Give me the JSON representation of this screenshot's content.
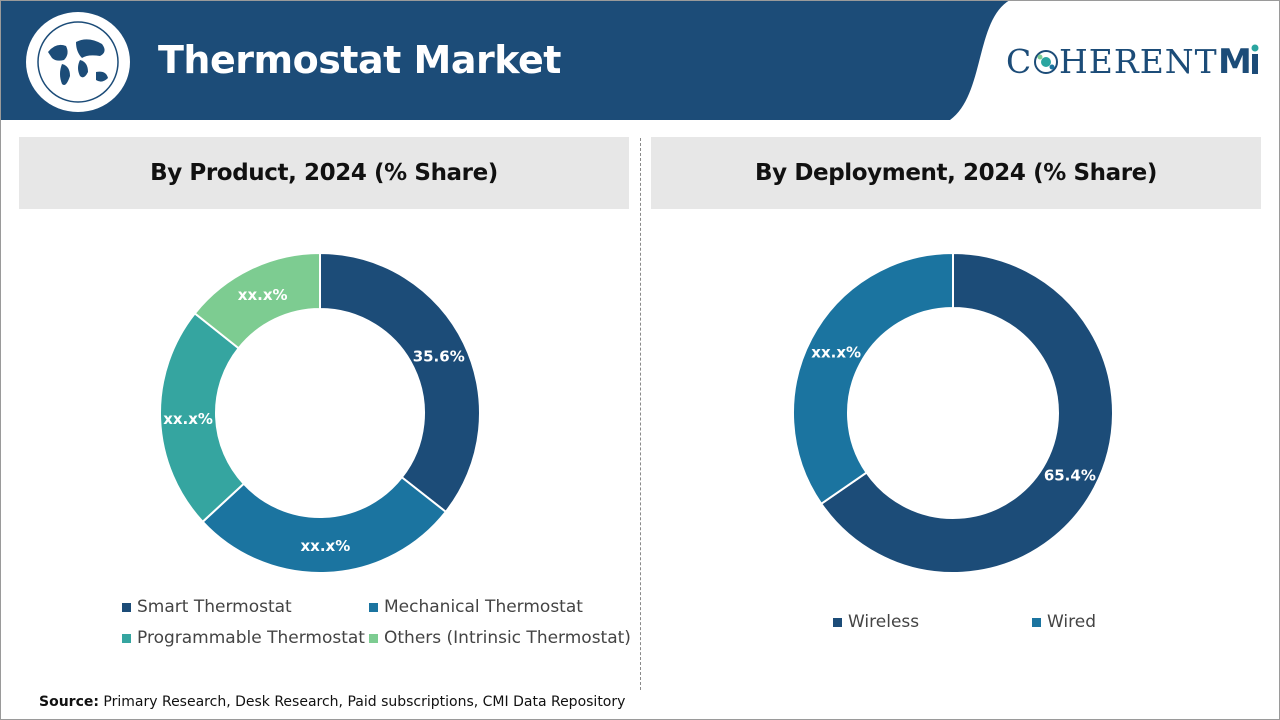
{
  "header": {
    "title": "Thermostat Market",
    "brand": "COHERENTMI"
  },
  "colors": {
    "header_bg": "#1c4c78",
    "smart": "#1c4c78",
    "mechanical": "#1b74a0",
    "programmable": "#35a5a0",
    "others": "#7dcc91",
    "wireless": "#1c4c78",
    "wired": "#1b74a0"
  },
  "source": {
    "label": "Source:",
    "text": "Primary Research, Desk Research, Paid subscriptions, CMI Data Repository"
  },
  "chart_data": [
    {
      "type": "pie",
      "title": "By Product, 2024 (% Share)",
      "donut": true,
      "categories": [
        "Smart Thermostat",
        "Mechanical Thermostat",
        "Programmable Thermostat",
        "Others (Intrinsic Thermostat)"
      ],
      "values": [
        35.6,
        27.5,
        22.6,
        14.3
      ],
      "data_labels": [
        "35.6%",
        "xx.x%",
        "xx.x%",
        "xx.x%"
      ],
      "legend_position": "bottom"
    },
    {
      "type": "pie",
      "title": "By Deployment, 2024 (% Share)",
      "donut": true,
      "categories": [
        "Wireless",
        "Wired"
      ],
      "values": [
        65.4,
        34.6
      ],
      "data_labels": [
        "65.4%",
        "xx.x%"
      ],
      "legend_position": "bottom"
    }
  ]
}
